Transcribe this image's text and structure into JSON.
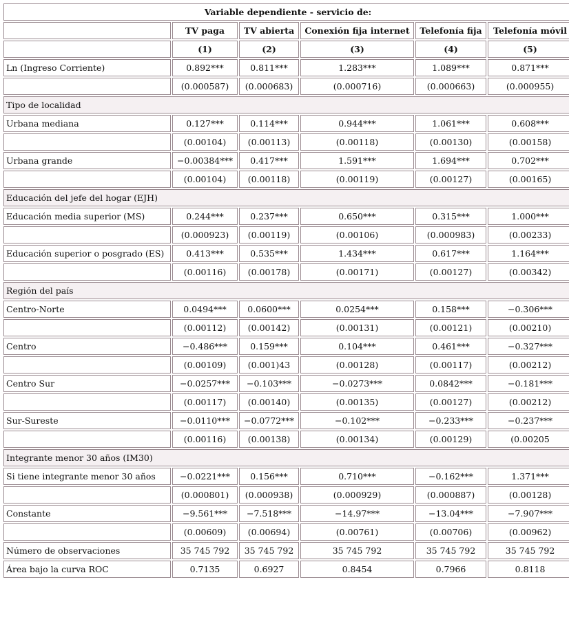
{
  "title": "Variable dependiente - servicio de:",
  "columns": [
    "TV paga",
    "TV abierta",
    "Conexión fija internet",
    "Telefonía fija",
    "Telefonía móvil"
  ],
  "column_numbers": [
    "(1)",
    "(2)",
    "(3)",
    "(4)",
    "(5)"
  ],
  "rows": [
    [
      "Ln (Ingreso Corriente)",
      "0.892***",
      "0.811***",
      "1.283***",
      "1.089***",
      "0.871***"
    ],
    [
      null,
      "(0.000587)",
      "(0.000683)",
      "(0.000716)",
      "(0.000663)",
      "(0.000955)"
    ],
    [
      "Tipo de localidad"
    ],
    [
      "Urbana mediana",
      "0.127***",
      "0.114***",
      "0.944***",
      "1.061***",
      "0.608***"
    ],
    [
      null,
      "(0.00104)",
      "(0.00113)",
      "(0.00118)",
      "(0.00130)",
      "(0.00158)"
    ],
    [
      "Urbana grande",
      "−0.00384***",
      "0.417***",
      "1.591***",
      "1.694***",
      "0.702***"
    ],
    [
      null,
      "(0.00104)",
      "(0.00118)",
      "(0.00119)",
      "(0.00127)",
      "(0.00165)"
    ],
    [
      "Educación del jefe del hogar (EJH)"
    ],
    [
      "Educación media superior (MS)",
      "0.244***",
      "0.237***",
      "0.650***",
      "0.315***",
      "1.000***"
    ],
    [
      null,
      "(0.000923)",
      "(0.00119)",
      "(0.00106)",
      "(0.000983)",
      "(0.00233)"
    ],
    [
      "Educación superior o posgrado (ES)",
      "0.413***",
      "0.535***",
      "1.434***",
      "0.617***",
      "1.164***"
    ],
    [
      null,
      "(0.00116)",
      "(0.00178)",
      "(0.00171)",
      "(0.00127)",
      "(0.00342)"
    ],
    [
      "Región del país"
    ],
    [
      "Centro-Norte",
      "0.0494***",
      "0.0600***",
      "0.0254***",
      "0.158***",
      "−0.306***"
    ],
    [
      null,
      "(0.00112)",
      "(0.00142)",
      "(0.00131)",
      "(0.00121)",
      "(0.00210)"
    ],
    [
      "Centro",
      "−0.486***",
      "0.159***",
      "0.104***",
      "0.461***",
      "−0.327***"
    ],
    [
      null,
      "(0.00109)",
      "(0.001)43",
      "(0.00128)",
      "(0.00117)",
      "(0.00212)"
    ],
    [
      "Centro Sur",
      "−0.0257***",
      "−0.103***",
      "−0.0273***",
      "0.0842***",
      "−0.181***"
    ],
    [
      null,
      "(0.00117)",
      "(0.00140)",
      "(0.00135)",
      "(0.00127)",
      "(0.00212)"
    ],
    [
      "Sur-Sureste",
      "−0.0110***",
      "−0.0772***",
      "−0.102***",
      "−0.233***",
      "−0.237***"
    ],
    [
      null,
      "(0.00116)",
      "(0.00138)",
      "(0.00134)",
      "(0.00129)",
      "(0.00205"
    ],
    [
      "Integrante menor 30 años (IM30)"
    ],
    [
      "Si tiene integrante menor 30 años",
      "−0.0221***",
      "0.156***",
      "0.710***",
      "−0.162***",
      "1.371***"
    ],
    [
      null,
      "(0.000801)",
      "(0.000938)",
      "(0.000929)",
      "(0.000887)",
      "(0.00128)"
    ],
    [
      "Constante",
      "−9.561***",
      "−7.518***",
      "−14.97***",
      "−13.04***",
      "−7.907***"
    ],
    [
      null,
      "(0.00609)",
      "(0.00694)",
      "(0.00761)",
      "(0.00706)",
      "(0.00962)"
    ],
    [
      "Número de observaciones",
      "35 745 792",
      "35 745 792",
      "35 745 792",
      "35 745 792",
      "35 745 792"
    ],
    [
      "Área bajo la curva ROC",
      "0.7135",
      "0.6927",
      "0.8454",
      "0.7966",
      "0.8118"
    ]
  ]
}
